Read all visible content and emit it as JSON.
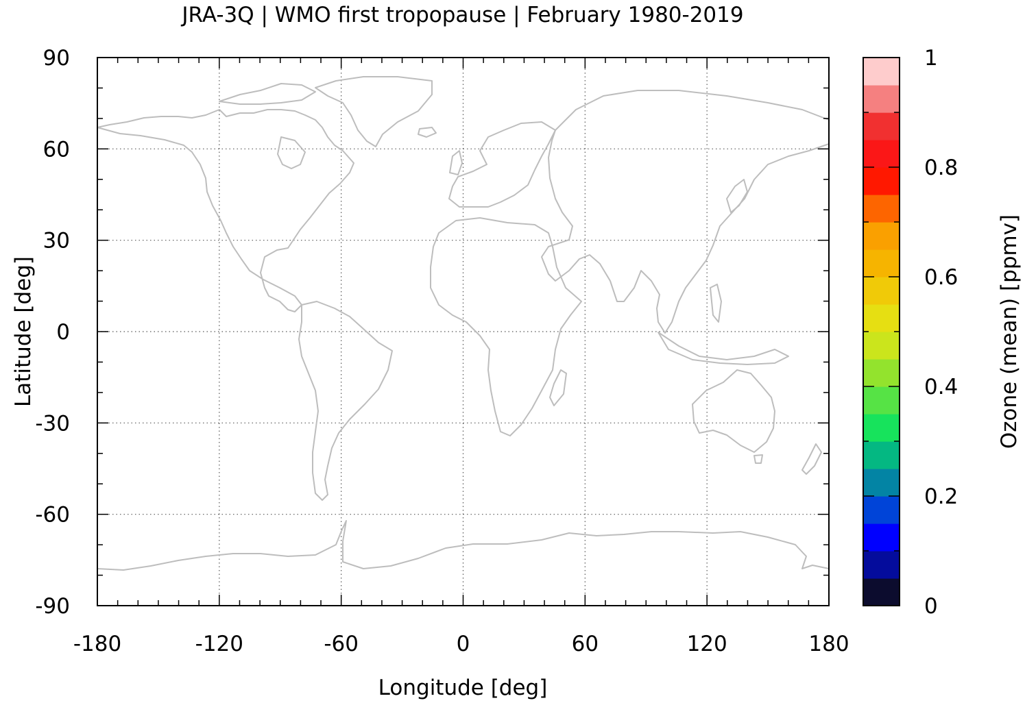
{
  "chart_data": {
    "type": "heatmap",
    "title": "JRA-3Q | WMO first tropopause | February 1980-2019",
    "xlabel": "Longitude [deg]",
    "ylabel": "Latitude [deg]",
    "xlim": [
      -180,
      180
    ],
    "ylim": [
      -90,
      90
    ],
    "xticks": [
      -180,
      -120,
      -60,
      0,
      60,
      120,
      180
    ],
    "yticks": [
      90,
      60,
      30,
      0,
      -30,
      -60,
      -90
    ],
    "xtick_labels": [
      "-180",
      "-120",
      "-60",
      "0",
      "60",
      "120",
      "180"
    ],
    "ytick_labels": [
      "90",
      "60",
      "30",
      "0",
      "-30",
      "-60",
      "-90"
    ],
    "grid": true,
    "colorbar": {
      "label": "Ozone (mean) [ppmv]",
      "range": [
        0,
        1
      ],
      "ticks": [
        0,
        0.2,
        0.4,
        0.6,
        0.8,
        1
      ],
      "tick_labels": [
        "0",
        "0.2",
        "0.4",
        "0.6",
        "0.8",
        "1"
      ],
      "colors": [
        "#0c0c2e",
        "#040c9c",
        "#0000ff",
        "#0044d8",
        "#0384a4",
        "#04b882",
        "#17e35c",
        "#56e345",
        "#93e32d",
        "#cbe51c",
        "#e6df12",
        "#f0ca08",
        "#f6b400",
        "#faa000",
        "#fd6500",
        "#ff1800",
        "#fb1717",
        "#f13030",
        "#f58080",
        "#fecccc"
      ]
    },
    "coastline_color": "#bdbdbd"
  }
}
